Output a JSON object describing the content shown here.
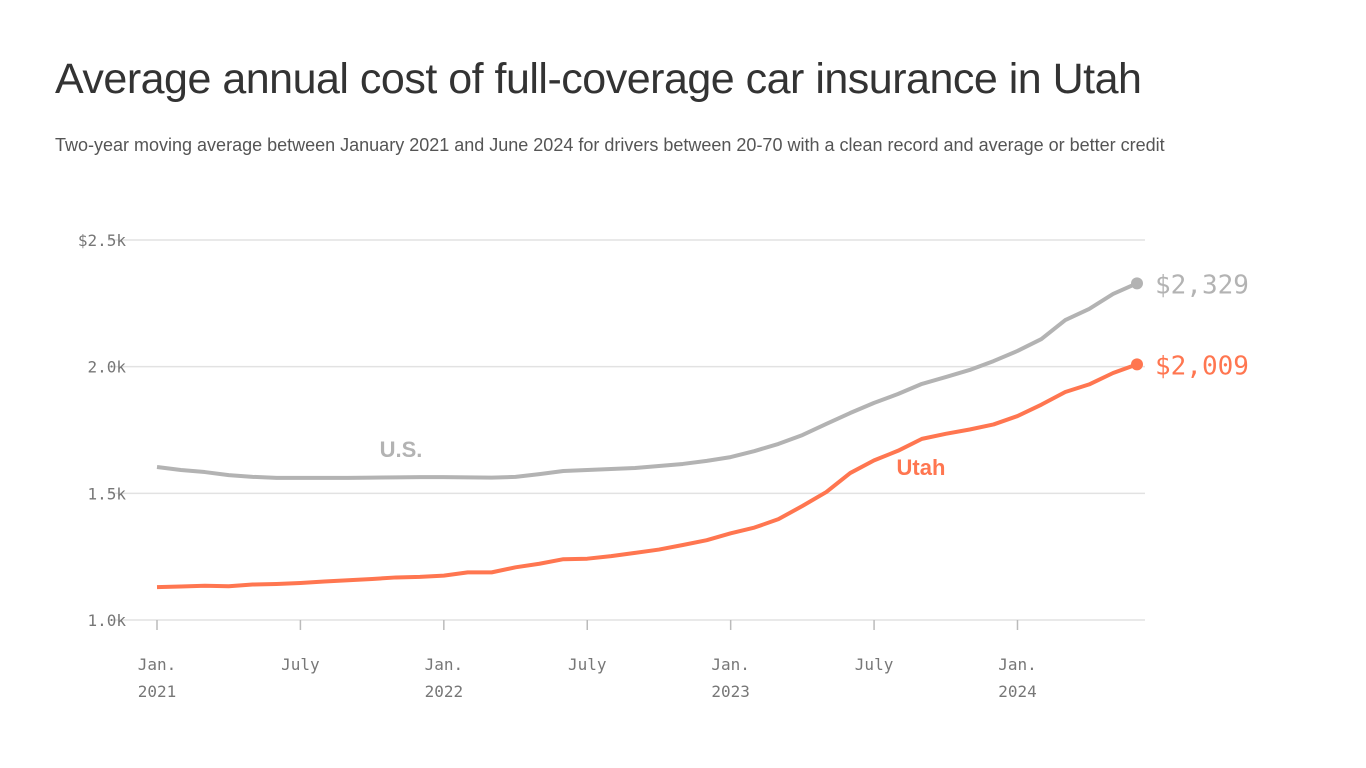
{
  "chart_data": {
    "type": "line",
    "title": "Average annual cost of full-coverage car insurance in Utah",
    "subtitle": "Two-year moving average between January 2021 and June 2024 for drivers between 20-70 with a clean record and average or better credit",
    "x_start": "2021-01",
    "x_end": "2024-06",
    "x_ticks": [
      {
        "month": "2021-01",
        "label": [
          "Jan.",
          "2021"
        ]
      },
      {
        "month": "2021-07",
        "label": [
          "July"
        ]
      },
      {
        "month": "2022-01",
        "label": [
          "Jan.",
          "2022"
        ]
      },
      {
        "month": "2022-07",
        "label": [
          "July"
        ]
      },
      {
        "month": "2023-01",
        "label": [
          "Jan.",
          "2023"
        ]
      },
      {
        "month": "2023-07",
        "label": [
          "July"
        ]
      },
      {
        "month": "2024-01",
        "label": [
          "Jan.",
          "2024"
        ]
      }
    ],
    "y_ticks": [
      {
        "value": 1000,
        "label": "1.0k"
      },
      {
        "value": 1500,
        "label": "1.5k"
      },
      {
        "value": 2000,
        "label": "2.0k"
      },
      {
        "value": 2500,
        "label": "$2.5k"
      }
    ],
    "ylim": [
      1000,
      2500
    ],
    "grid": true,
    "series": [
      {
        "name": "U.S.",
        "color": "#b3b3b3",
        "end_label": "$2,329",
        "values": [
          1604,
          1592,
          1584,
          1572,
          1565,
          1561,
          1561,
          1561,
          1561,
          1562,
          1563,
          1564,
          1564,
          1563,
          1562,
          1565,
          1576,
          1588,
          1592,
          1596,
          1600,
          1608,
          1616,
          1628,
          1643,
          1667,
          1695,
          1730,
          1774,
          1817,
          1857,
          1892,
          1932,
          1959,
          1987,
          2022,
          2062,
          2109,
          2184,
          2228,
          2287,
          2329
        ]
      },
      {
        "name": "Utah",
        "color": "#ff7650",
        "end_label": "$2,009",
        "values": [
          1130,
          1132,
          1135,
          1133,
          1140,
          1142,
          1146,
          1152,
          1157,
          1162,
          1168,
          1170,
          1175,
          1188,
          1188,
          1208,
          1222,
          1240,
          1242,
          1252,
          1265,
          1278,
          1296,
          1315,
          1342,
          1365,
          1398,
          1450,
          1505,
          1580,
          1630,
          1668,
          1715,
          1735,
          1752,
          1772,
          1805,
          1850,
          1900,
          1930,
          1975,
          2009
        ]
      }
    ]
  }
}
